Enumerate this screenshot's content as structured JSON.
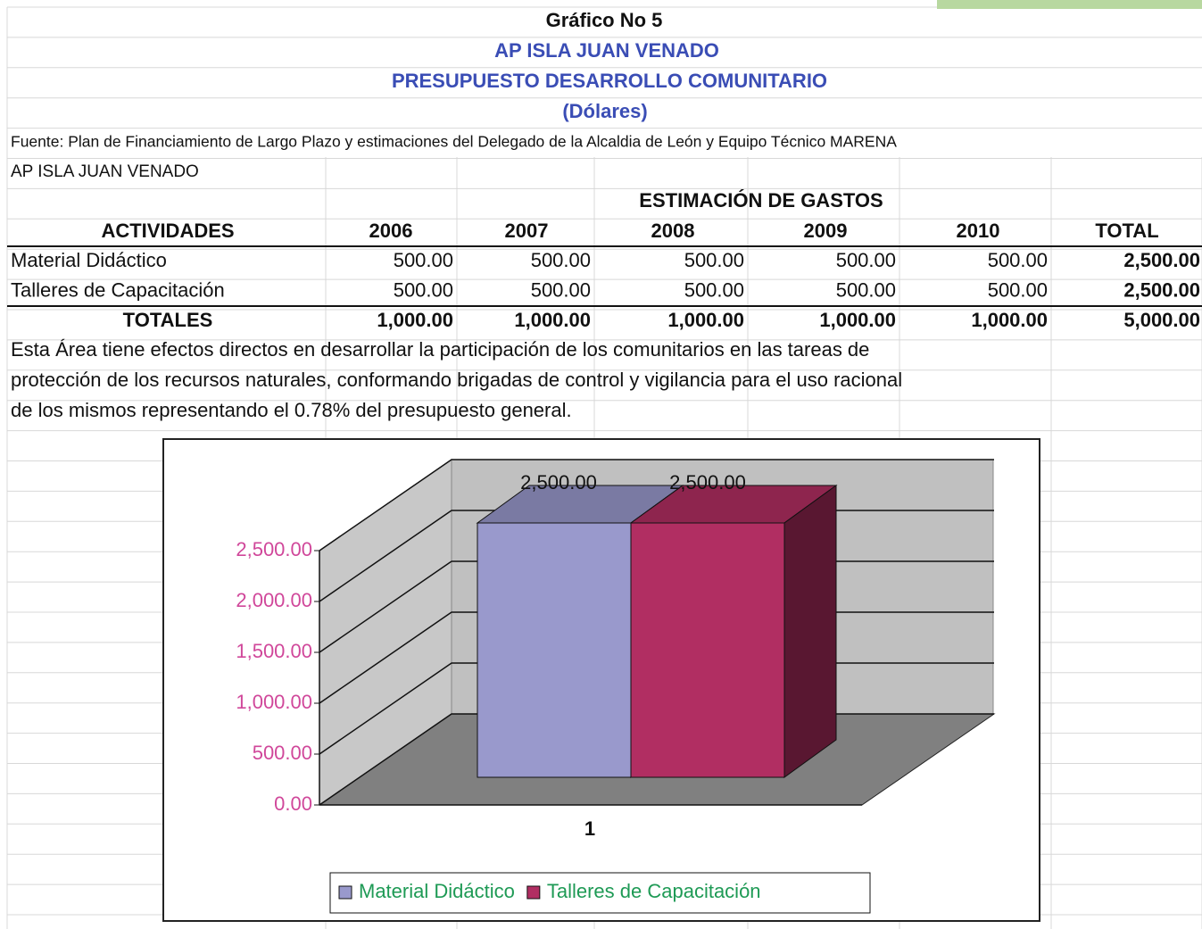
{
  "header": {
    "title": "Gráfico No 5",
    "subtitle": "AP ISLA JUAN VENADO",
    "heading": "PRESUPUESTO DESARROLLO COMUNITARIO",
    "unit": "(Dólares)",
    "source": "Fuente: Plan de Financiamiento de Largo Plazo y estimaciones del Delegado de la Alcaldia de León y Equipo Técnico MARENA",
    "area": "AP ISLA JUAN VENADO"
  },
  "table": {
    "group_header": "ESTIMACIÓN DE GASTOS",
    "columns": [
      "ACTIVIDADES",
      "2006",
      "2007",
      "2008",
      "2009",
      "2010",
      "TOTAL"
    ],
    "rows": [
      [
        "Material Didáctico",
        "500.00",
        "500.00",
        "500.00",
        "500.00",
        "500.00",
        "2,500.00"
      ],
      [
        "Talleres de Capacitación",
        "500.00",
        "500.00",
        "500.00",
        "500.00",
        "500.00",
        "2,500.00"
      ]
    ],
    "totals": [
      "TOTALES",
      "1,000.00",
      "1,000.00",
      "1,000.00",
      "1,000.00",
      "1,000.00",
      "5,000.00"
    ]
  },
  "paragraph": [
    "Esta Área tiene efectos directos en desarrollar la participación de los comunitarios en las tareas de",
    "protección de los recursos naturales, conformando brigadas de control y vigilancia para el uso racional",
    "de los mismos representando el 0.78% del presupuesto general."
  ],
  "chart_data": {
    "type": "bar",
    "categories": [
      "1"
    ],
    "series": [
      {
        "name": "Material Didáctico",
        "color": "#9999cc",
        "values": [
          2500
        ],
        "value_labels": [
          "2,500.00"
        ]
      },
      {
        "name": "Talleres de Capacitación",
        "color": "#b12e62",
        "values": [
          2500
        ],
        "value_labels": [
          "2,500.00"
        ]
      }
    ],
    "ylim": [
      0,
      2500
    ],
    "yticks": [
      {
        "value": 0,
        "label": "0.00"
      },
      {
        "value": 500,
        "label": "500.00"
      },
      {
        "value": 1000,
        "label": "1,000.00"
      },
      {
        "value": 1500,
        "label": "1,500.00"
      },
      {
        "value": 2000,
        "label": "2,000.00"
      },
      {
        "value": 2500,
        "label": "2,500.00"
      }
    ],
    "grid": true,
    "legend": "bottom"
  }
}
